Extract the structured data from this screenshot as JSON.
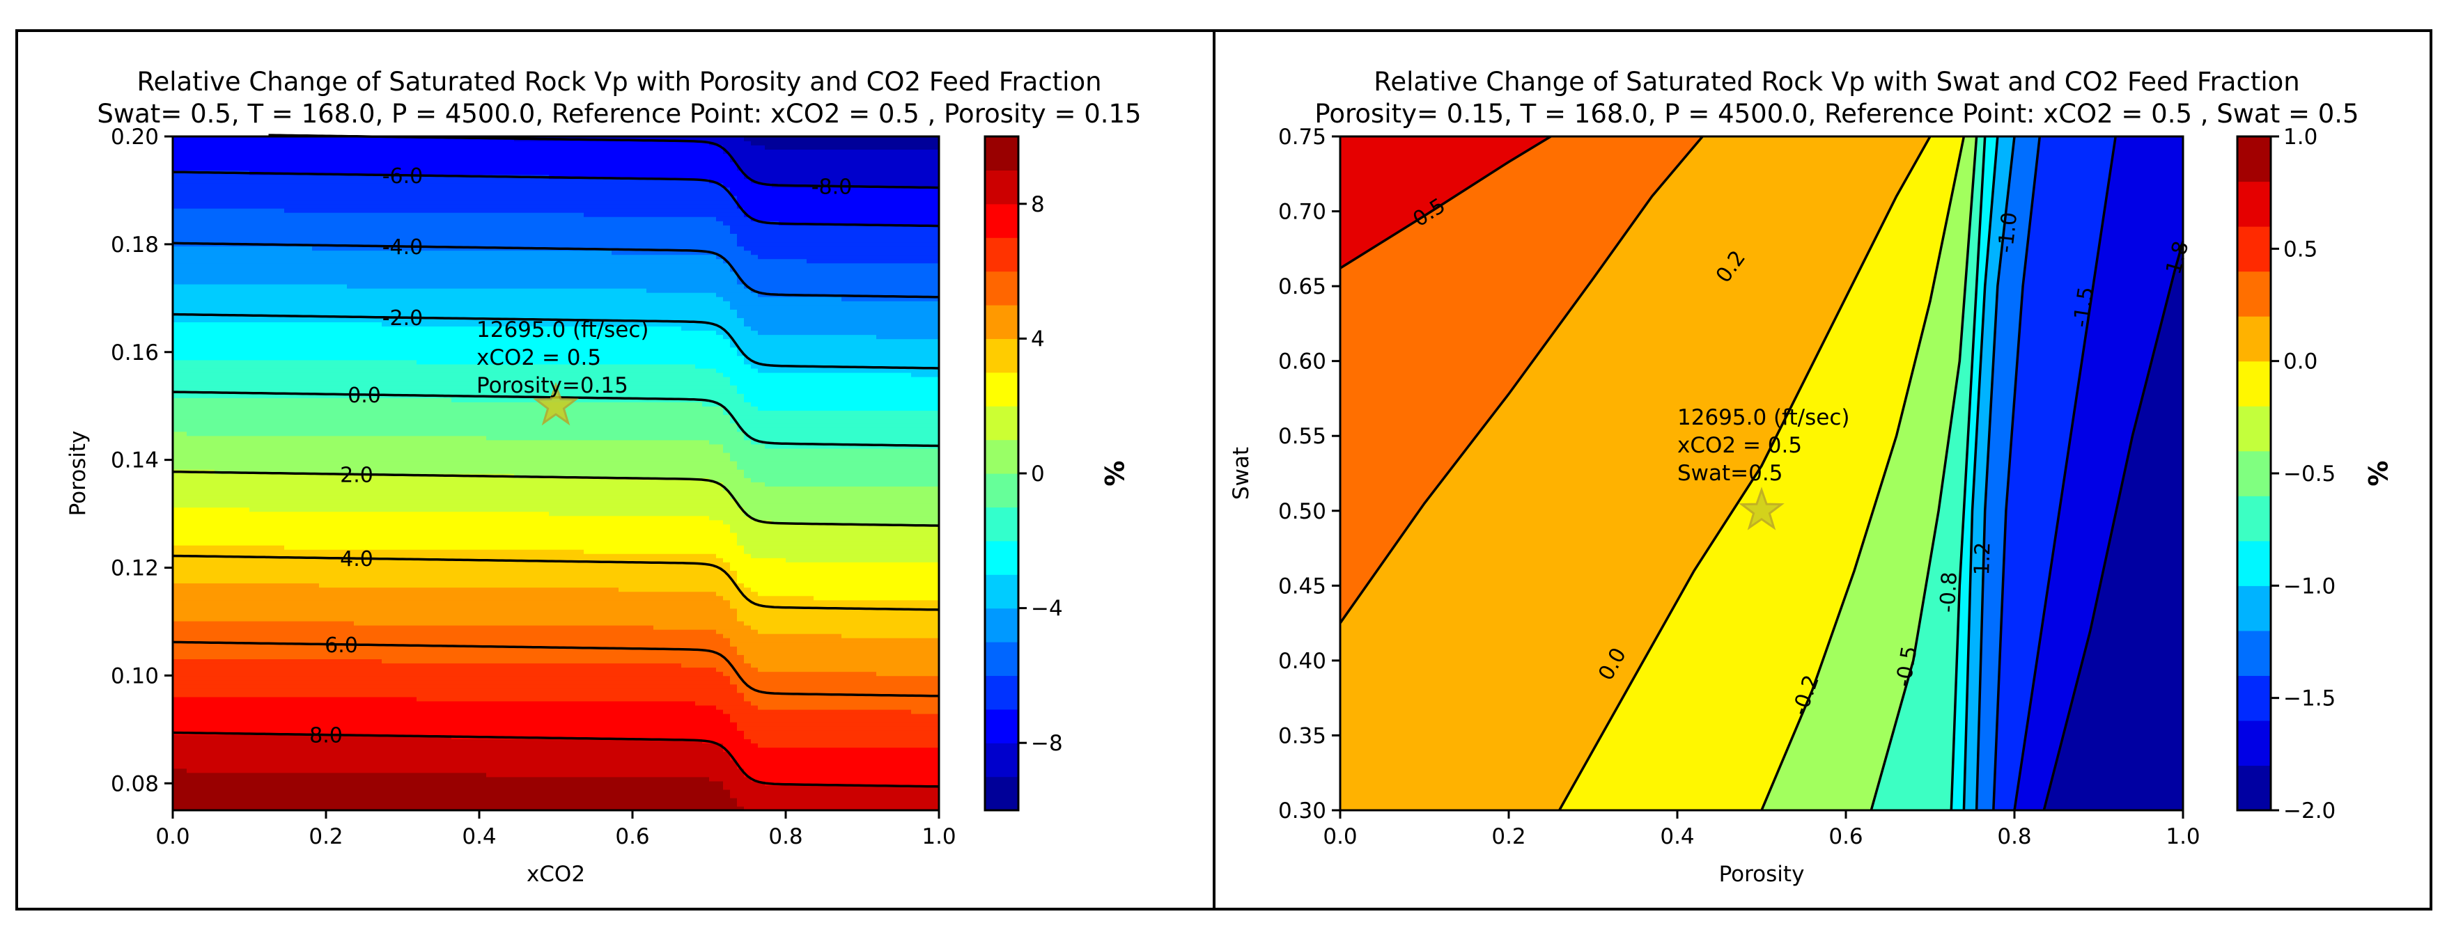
{
  "chart_data": [
    {
      "type": "contour",
      "title": "Relative Change of Saturated Rock Vp with Porosity and CO2 Feed Fraction",
      "subtitle": "Swat= 0.5, T = 168.0, P = 4500.0, Reference Point: xCO2 = 0.5 , Porosity = 0.15",
      "xlabel": "xCO2",
      "ylabel": "Porosity",
      "xlim": [
        0.0,
        1.0
      ],
      "ylim": [
        0.075,
        0.2
      ],
      "xticks": [
        "0.0",
        "0.2",
        "0.4",
        "0.6",
        "0.8",
        "1.0"
      ],
      "yticks": [
        "0.08",
        "0.10",
        "0.12",
        "0.14",
        "0.16",
        "0.18",
        "0.20"
      ],
      "colorbar": {
        "label": "%",
        "range": [
          -10,
          10
        ],
        "ticks": [
          "8",
          "4",
          "0",
          "−4",
          "−8"
        ],
        "tick_values": [
          8,
          4,
          0,
          -4,
          -8
        ],
        "levels": [
          -10,
          -9,
          -8,
          -7,
          -6,
          -5,
          -4,
          -3,
          -2,
          -1,
          0,
          1,
          2,
          3,
          4,
          5,
          6,
          7,
          8,
          9,
          10
        ]
      },
      "contours": [
        {
          "level": -8.0,
          "label": "-8.0",
          "y_at_x0": 0.2005,
          "y_at_x1": 0.1905
        },
        {
          "level": -6.0,
          "label": "-6.0",
          "y_at_x0": 0.1934,
          "y_at_x1": 0.1834
        },
        {
          "level": -4.0,
          "label": "-4.0",
          "y_at_x0": 0.1802,
          "y_at_x1": 0.1702
        },
        {
          "level": -2.0,
          "label": "-2.0",
          "y_at_x0": 0.167,
          "y_at_x1": 0.157
        },
        {
          "level": 0.0,
          "label": "0.0",
          "y_at_x0": 0.1526,
          "y_at_x1": 0.1426
        },
        {
          "level": 2.0,
          "label": "2.0",
          "y_at_x0": 0.1378,
          "y_at_x1": 0.1278
        },
        {
          "level": 4.0,
          "label": "4.0",
          "y_at_x0": 0.1222,
          "y_at_x1": 0.1122
        },
        {
          "level": 6.0,
          "label": "6.0",
          "y_at_x0": 0.1062,
          "y_at_x1": 0.0962
        },
        {
          "level": 8.0,
          "label": "8.0",
          "y_at_x0": 0.0894,
          "y_at_x1": 0.0794
        }
      ],
      "reference_point": {
        "x": 0.5,
        "y": 0.15,
        "marker": "star"
      },
      "annotation": [
        "12695.0 (ft/sec)",
        "xCO2 = 0.5",
        "Porosity=0.15"
      ]
    },
    {
      "type": "contour",
      "title": "Relative Change of Saturated Rock Vp with Swat and CO2 Feed Fraction",
      "subtitle": "Porosity= 0.15, T = 168.0, P = 4500.0, Reference Point: xCO2 = 0.5 , Swat = 0.5",
      "xlabel": "Porosity",
      "ylabel": "Swat",
      "xlim": [
        0.0,
        1.0
      ],
      "ylim": [
        0.3,
        0.75
      ],
      "xticks": [
        "0.0",
        "0.2",
        "0.4",
        "0.6",
        "0.8",
        "1.0"
      ],
      "yticks": [
        "0.30",
        "0.35",
        "0.40",
        "0.45",
        "0.50",
        "0.55",
        "0.60",
        "0.65",
        "0.70",
        "0.75"
      ],
      "colorbar": {
        "label": "%",
        "range": [
          -2.0,
          1.0
        ],
        "ticks": [
          "1.0",
          "0.5",
          "0.0",
          "−0.5",
          "−1.0",
          "−1.5",
          "−2.0"
        ],
        "tick_values": [
          1.0,
          0.5,
          0.0,
          -0.5,
          -1.0,
          -1.5,
          -2.0
        ],
        "levels": [
          -2.0,
          -1.8,
          -1.6,
          -1.4,
          -1.2,
          -1.0,
          -0.8,
          -0.6,
          -0.4,
          -0.2,
          0.0,
          0.2,
          0.4,
          0.6,
          0.8,
          1.0
        ]
      },
      "contours": [
        {
          "level": 0.5,
          "label": "0.5",
          "points": [
            [
              0.0,
              0.662
            ],
            [
              0.1,
              0.697
            ],
            [
              0.2,
              0.733
            ],
            [
              0.25,
              0.75
            ]
          ]
        },
        {
          "level": 0.2,
          "label": "0.2",
          "points": [
            [
              0.0,
              0.425
            ],
            [
              0.1,
              0.505
            ],
            [
              0.2,
              0.578
            ],
            [
              0.3,
              0.655
            ],
            [
              0.37,
              0.71
            ],
            [
              0.43,
              0.75
            ]
          ]
        },
        {
          "level": 0.0,
          "label": "0.0",
          "points": [
            [
              0.26,
              0.3
            ],
            [
              0.34,
              0.38
            ],
            [
              0.42,
              0.46
            ],
            [
              0.5,
              0.53
            ],
            [
              0.58,
              0.62
            ],
            [
              0.66,
              0.71
            ],
            [
              0.7,
              0.75
            ]
          ]
        },
        {
          "level": -0.2,
          "label": "-0.2",
          "points": [
            [
              0.5,
              0.3
            ],
            [
              0.56,
              0.38
            ],
            [
              0.61,
              0.46
            ],
            [
              0.66,
              0.55
            ],
            [
              0.7,
              0.64
            ],
            [
              0.74,
              0.75
            ]
          ]
        },
        {
          "level": -0.5,
          "label": "-0.5",
          "points": [
            [
              0.63,
              0.3
            ],
            [
              0.68,
              0.4
            ],
            [
              0.71,
              0.5
            ],
            [
              0.735,
              0.6
            ],
            [
              0.755,
              0.75
            ]
          ]
        },
        {
          "level": -0.8,
          "label": "-0.8",
          "points": [
            [
              0.725,
              0.3
            ],
            [
              0.735,
              0.45
            ],
            [
              0.75,
              0.6
            ],
            [
              0.765,
              0.75
            ]
          ]
        },
        {
          "level": -1.0,
          "label": "",
          "points": [
            [
              0.74,
              0.3
            ],
            [
              0.75,
              0.5
            ],
            [
              0.765,
              0.65
            ],
            [
              0.78,
              0.75
            ]
          ]
        },
        {
          "level": -1.2,
          "label": "-1.2",
          "points": [
            [
              0.755,
              0.3
            ],
            [
              0.765,
              0.5
            ],
            [
              0.78,
              0.65
            ],
            [
              0.8,
              0.75
            ]
          ]
        },
        {
          "level": -1.0,
          "label": "-1.0",
          "points": [
            [
              0.775,
              0.3
            ],
            [
              0.79,
              0.5
            ],
            [
              0.81,
              0.65
            ],
            [
              0.83,
              0.75
            ]
          ]
        },
        {
          "level": -1.5,
          "label": "-1.5",
          "points": [
            [
              0.8,
              0.3
            ],
            [
              0.84,
              0.45
            ],
            [
              0.88,
              0.6
            ],
            [
              0.92,
              0.75
            ]
          ]
        },
        {
          "level": -1.8,
          "label": "-1.8",
          "points": [
            [
              0.835,
              0.3
            ],
            [
              0.89,
              0.42
            ],
            [
              0.94,
              0.55
            ],
            [
              0.99,
              0.66
            ],
            [
              1.0,
              0.68
            ]
          ]
        }
      ],
      "reference_point": {
        "x": 0.5,
        "y": 0.5,
        "marker": "star"
      },
      "annotation": [
        "12695.0 (ft/sec)",
        "xCO2 = 0.5",
        "Swat=0.5"
      ]
    }
  ]
}
